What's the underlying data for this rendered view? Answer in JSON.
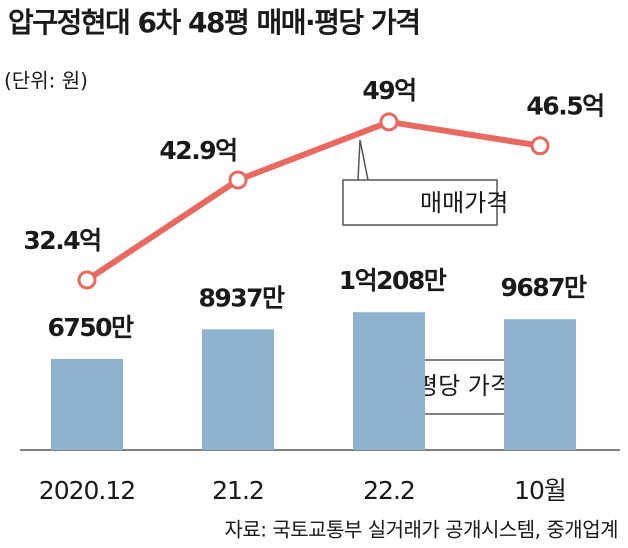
{
  "chart_data": {
    "type": "bar",
    "title": "압구정현대 6차 48평 매매·평당 가격",
    "unit_note": "(단위: 원)",
    "source": "자료: 국토교통부 실거래가 공개시스템, 중개업계",
    "categories": [
      "2020.12",
      "21.2",
      "22.2",
      "10월"
    ],
    "series": [
      {
        "name": "평당 가격",
        "type": "bar",
        "color": "#8fb3cf",
        "values": [
          6750,
          8937,
          10208,
          9687
        ],
        "value_labels": [
          "6750만",
          "8937만",
          "1억208만",
          "9687만"
        ]
      },
      {
        "name": "매매가격",
        "type": "line",
        "axis": "y2",
        "color": "#e8695f",
        "values": [
          32.4,
          42.9,
          49,
          46.5
        ],
        "value_labels": [
          "32.4억",
          "42.9억",
          "49억",
          "46.5억"
        ]
      }
    ]
  }
}
